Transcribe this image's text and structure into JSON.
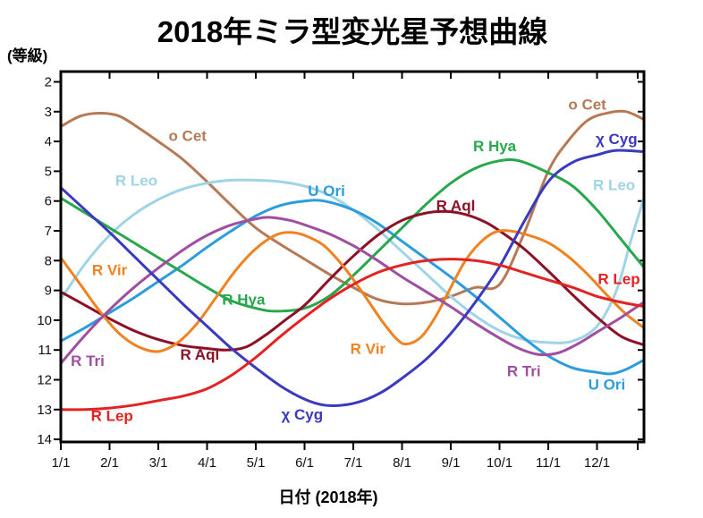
{
  "title": "2018年ミラ型変光星予想曲線",
  "y_axis": {
    "unit_label": "(等級)",
    "tick_labels": [
      "2",
      "3",
      "4",
      "5",
      "6",
      "7",
      "8",
      "9",
      "10",
      "11",
      "12",
      "13",
      "14"
    ],
    "tick_values": [
      2,
      3,
      4,
      5,
      6,
      7,
      8,
      9,
      10,
      11,
      12,
      13,
      14
    ]
  },
  "x_axis": {
    "label": "日付 (2018年)",
    "tick_labels": [
      "1/1",
      "2/1",
      "3/1",
      "4/1",
      "5/1",
      "6/1",
      "7/1",
      "8/1",
      "9/1",
      "10/1",
      "11/1",
      "12/1"
    ],
    "tick_months": [
      1,
      2,
      3,
      4,
      5,
      6,
      7,
      8,
      9,
      10,
      11,
      12
    ],
    "has_end_tick": true
  },
  "chart_data": {
    "type": "line",
    "title": "2018年ミラ型変光星予想曲線",
    "xlabel": "日付 (2018年)",
    "ylabel": "(等級)",
    "x_unit": "month number in 2018 (1 = Jan 1, 13 = Dec 31)",
    "xlim": [
      1,
      12.96
    ],
    "ylim": [
      2,
      14
    ],
    "y_axis_inverted": true,
    "grid": false,
    "legend": "labels drawn beside curves",
    "series": [
      {
        "id": "o-cet",
        "name": "o Cet",
        "color": "#b57a55",
        "labels": [
          {
            "text": "o Cet",
            "x": 3.6,
            "y": 3.8
          },
          {
            "text": "o Cet",
            "x": 11.8,
            "y": 2.75
          }
        ],
        "points": [
          [
            1,
            3.5
          ],
          [
            1.4,
            3.15
          ],
          [
            1.8,
            3.05
          ],
          [
            2.2,
            3.15
          ],
          [
            2.6,
            3.55
          ],
          [
            3,
            4.0
          ],
          [
            3.5,
            4.6
          ],
          [
            4,
            5.35
          ],
          [
            4.5,
            6.15
          ],
          [
            5,
            6.9
          ],
          [
            5.5,
            7.45
          ],
          [
            6,
            7.95
          ],
          [
            6.5,
            8.45
          ],
          [
            7,
            8.9
          ],
          [
            7.5,
            9.3
          ],
          [
            8,
            9.45
          ],
          [
            8.5,
            9.4
          ],
          [
            9,
            9.2
          ],
          [
            9.5,
            8.9
          ],
          [
            10,
            8.8
          ],
          [
            10.5,
            7.1
          ],
          [
            11,
            5.0
          ],
          [
            11.4,
            4.0
          ],
          [
            11.8,
            3.3
          ],
          [
            12.2,
            3.05
          ],
          [
            12.6,
            3.0
          ],
          [
            13,
            3.3
          ]
        ]
      },
      {
        "id": "r-leo",
        "name": "R Leo",
        "color": "#9fd4e6",
        "labels": [
          {
            "text": "R Leo",
            "x": 2.55,
            "y": 5.3
          },
          {
            "text": "R Leo",
            "x": 12.35,
            "y": 5.45
          }
        ],
        "points": [
          [
            1,
            9.3
          ],
          [
            1.5,
            8.1
          ],
          [
            2,
            7.15
          ],
          [
            2.5,
            6.45
          ],
          [
            3,
            5.95
          ],
          [
            3.5,
            5.6
          ],
          [
            4,
            5.4
          ],
          [
            4.5,
            5.3
          ],
          [
            5,
            5.3
          ],
          [
            5.5,
            5.35
          ],
          [
            6,
            5.5
          ],
          [
            6.5,
            5.8
          ],
          [
            7,
            6.3
          ],
          [
            7.5,
            6.95
          ],
          [
            8,
            7.7
          ],
          [
            8.5,
            8.45
          ],
          [
            9,
            9.2
          ],
          [
            9.5,
            9.85
          ],
          [
            10,
            10.35
          ],
          [
            10.5,
            10.65
          ],
          [
            11,
            10.75
          ],
          [
            11.5,
            10.7
          ],
          [
            12,
            10.2
          ],
          [
            12.4,
            9.0
          ],
          [
            12.7,
            7.3
          ],
          [
            13,
            5.7
          ]
        ]
      },
      {
        "id": "u-ori",
        "name": "U Ori",
        "color": "#2b9ddd",
        "labels": [
          {
            "text": "U Ori",
            "x": 6.45,
            "y": 5.65
          },
          {
            "text": "U Ori",
            "x": 12.2,
            "y": 12.15
          }
        ],
        "points": [
          [
            1,
            10.7
          ],
          [
            1.5,
            10.25
          ],
          [
            2,
            9.75
          ],
          [
            2.5,
            9.25
          ],
          [
            3,
            8.7
          ],
          [
            3.5,
            8.15
          ],
          [
            4,
            7.55
          ],
          [
            4.5,
            7.0
          ],
          [
            5,
            6.5
          ],
          [
            5.5,
            6.15
          ],
          [
            6,
            6.0
          ],
          [
            6.4,
            6.0
          ],
          [
            7,
            6.3
          ],
          [
            7.5,
            6.75
          ],
          [
            8,
            7.35
          ],
          [
            8.5,
            7.95
          ],
          [
            9,
            8.55
          ],
          [
            9.5,
            9.2
          ],
          [
            10,
            9.9
          ],
          [
            10.5,
            10.6
          ],
          [
            11,
            11.2
          ],
          [
            11.5,
            11.6
          ],
          [
            12,
            11.75
          ],
          [
            12.3,
            11.8
          ],
          [
            12.6,
            11.65
          ],
          [
            13,
            11.3
          ]
        ]
      },
      {
        "id": "r-hya",
        "name": "R Hya",
        "color": "#28a74d",
        "labels": [
          {
            "text": "R Hya",
            "x": 4.75,
            "y": 9.3
          },
          {
            "text": "R Hya",
            "x": 9.9,
            "y": 4.15
          }
        ],
        "points": [
          [
            1,
            5.9
          ],
          [
            1.5,
            6.4
          ],
          [
            2,
            6.9
          ],
          [
            2.5,
            7.4
          ],
          [
            3,
            7.9
          ],
          [
            3.5,
            8.4
          ],
          [
            4,
            8.9
          ],
          [
            4.5,
            9.35
          ],
          [
            5,
            9.6
          ],
          [
            5.4,
            9.7
          ],
          [
            6,
            9.6
          ],
          [
            6.5,
            9.2
          ],
          [
            7,
            8.5
          ],
          [
            7.5,
            7.7
          ],
          [
            8,
            6.9
          ],
          [
            8.5,
            6.1
          ],
          [
            9,
            5.4
          ],
          [
            9.5,
            4.9
          ],
          [
            10,
            4.65
          ],
          [
            10.4,
            4.65
          ],
          [
            11,
            5.05
          ],
          [
            11.5,
            5.5
          ],
          [
            12,
            6.3
          ],
          [
            12.5,
            7.3
          ],
          [
            13,
            8.3
          ]
        ]
      },
      {
        "id": "r-aql",
        "name": "R Aql",
        "color": "#8c1026",
        "labels": [
          {
            "text": "R Aql",
            "x": 3.85,
            "y": 11.15
          },
          {
            "text": "R Aql",
            "x": 9.1,
            "y": 6.15
          }
        ],
        "points": [
          [
            1,
            9.05
          ],
          [
            1.5,
            9.5
          ],
          [
            2,
            9.95
          ],
          [
            2.5,
            10.35
          ],
          [
            3,
            10.65
          ],
          [
            3.5,
            10.85
          ],
          [
            4,
            10.95
          ],
          [
            4.4,
            11.0
          ],
          [
            4.8,
            10.9
          ],
          [
            5.2,
            10.5
          ],
          [
            5.6,
            10.0
          ],
          [
            6,
            9.5
          ],
          [
            6.5,
            8.65
          ],
          [
            7,
            7.85
          ],
          [
            7.5,
            7.15
          ],
          [
            8,
            6.65
          ],
          [
            8.5,
            6.4
          ],
          [
            8.9,
            6.35
          ],
          [
            9.3,
            6.45
          ],
          [
            9.7,
            6.7
          ],
          [
            10,
            7.0
          ],
          [
            10.5,
            7.6
          ],
          [
            11,
            8.35
          ],
          [
            11.5,
            9.15
          ],
          [
            12,
            9.9
          ],
          [
            12.5,
            10.55
          ],
          [
            13,
            10.85
          ]
        ]
      },
      {
        "id": "r-vir",
        "name": "R Vir",
        "color": "#f08222",
        "labels": [
          {
            "text": "R Vir",
            "x": 2.0,
            "y": 8.3
          },
          {
            "text": "R Vir",
            "x": 7.3,
            "y": 10.95
          }
        ],
        "points": [
          [
            1,
            7.9
          ],
          [
            1.4,
            8.8
          ],
          [
            1.8,
            9.7
          ],
          [
            2.2,
            10.45
          ],
          [
            2.6,
            10.9
          ],
          [
            3,
            11.05
          ],
          [
            3.4,
            10.75
          ],
          [
            3.8,
            10.1
          ],
          [
            4.2,
            9.2
          ],
          [
            4.6,
            8.3
          ],
          [
            5,
            7.6
          ],
          [
            5.4,
            7.15
          ],
          [
            5.7,
            7.05
          ],
          [
            6,
            7.15
          ],
          [
            6.4,
            7.5
          ],
          [
            6.8,
            8.2
          ],
          [
            7.2,
            9.1
          ],
          [
            7.6,
            10.05
          ],
          [
            7.9,
            10.65
          ],
          [
            8.1,
            10.8
          ],
          [
            8.4,
            10.55
          ],
          [
            8.7,
            9.85
          ],
          [
            9,
            8.9
          ],
          [
            9.3,
            8.0
          ],
          [
            9.6,
            7.4
          ],
          [
            9.9,
            7.05
          ],
          [
            10.2,
            7.0
          ],
          [
            10.6,
            7.15
          ],
          [
            11,
            7.4
          ],
          [
            11.4,
            7.85
          ],
          [
            11.8,
            8.45
          ],
          [
            12.2,
            9.15
          ],
          [
            12.6,
            9.8
          ],
          [
            13,
            10.3
          ]
        ]
      },
      {
        "id": "r-tri",
        "name": "R Tri",
        "color": "#a04fa0",
        "labels": [
          {
            "text": "R Tri",
            "x": 1.55,
            "y": 11.35
          },
          {
            "text": "R Tri",
            "x": 10.5,
            "y": 11.7
          }
        ],
        "points": [
          [
            1,
            11.45
          ],
          [
            1.5,
            10.5
          ],
          [
            2,
            9.65
          ],
          [
            2.5,
            8.9
          ],
          [
            3,
            8.25
          ],
          [
            3.5,
            7.65
          ],
          [
            4,
            7.15
          ],
          [
            4.5,
            6.8
          ],
          [
            5,
            6.6
          ],
          [
            5.3,
            6.55
          ],
          [
            5.7,
            6.65
          ],
          [
            6,
            6.8
          ],
          [
            6.5,
            7.1
          ],
          [
            7,
            7.5
          ],
          [
            7.5,
            8.0
          ],
          [
            8,
            8.55
          ],
          [
            8.5,
            9.05
          ],
          [
            9,
            9.55
          ],
          [
            9.5,
            10.1
          ],
          [
            10,
            10.6
          ],
          [
            10.4,
            10.95
          ],
          [
            10.8,
            11.15
          ],
          [
            11.2,
            11.1
          ],
          [
            11.6,
            10.8
          ],
          [
            12,
            10.4
          ],
          [
            12.5,
            9.9
          ],
          [
            13,
            9.35
          ]
        ]
      },
      {
        "id": "chi-cyg",
        "name": "χ Cyg",
        "color": "#3a3ac0",
        "labels": [
          {
            "text": "χ Cyg",
            "x": 5.95,
            "y": 13.15
          },
          {
            "text": "χ Cyg",
            "x": 12.4,
            "y": 3.9
          }
        ],
        "points": [
          [
            1,
            5.55
          ],
          [
            1.5,
            6.3
          ],
          [
            2,
            7.05
          ],
          [
            2.5,
            7.85
          ],
          [
            3,
            8.65
          ],
          [
            3.5,
            9.45
          ],
          [
            4,
            10.2
          ],
          [
            4.5,
            10.95
          ],
          [
            5,
            11.6
          ],
          [
            5.5,
            12.2
          ],
          [
            6,
            12.65
          ],
          [
            6.4,
            12.85
          ],
          [
            6.8,
            12.85
          ],
          [
            7.2,
            12.7
          ],
          [
            7.6,
            12.4
          ],
          [
            8,
            11.95
          ],
          [
            8.5,
            11.3
          ],
          [
            9,
            10.45
          ],
          [
            9.5,
            9.4
          ],
          [
            10,
            8.2
          ],
          [
            10.5,
            6.7
          ],
          [
            11,
            5.35
          ],
          [
            11.5,
            4.7
          ],
          [
            12,
            4.45
          ],
          [
            12.4,
            4.3
          ],
          [
            13,
            4.35
          ]
        ]
      },
      {
        "id": "r-lep",
        "name": "R Lep",
        "color": "#e32222",
        "labels": [
          {
            "text": "R Lep",
            "x": 2.05,
            "y": 13.2
          },
          {
            "text": "R Lep",
            "x": 12.45,
            "y": 8.6
          }
        ],
        "points": [
          [
            1,
            13.0
          ],
          [
            1.5,
            13.0
          ],
          [
            2,
            12.95
          ],
          [
            2.5,
            12.85
          ],
          [
            3,
            12.7
          ],
          [
            3.5,
            12.55
          ],
          [
            4,
            12.3
          ],
          [
            4.5,
            11.85
          ],
          [
            5,
            11.25
          ],
          [
            5.5,
            10.55
          ],
          [
            6,
            9.9
          ],
          [
            6.5,
            9.3
          ],
          [
            7,
            8.8
          ],
          [
            7.5,
            8.4
          ],
          [
            8,
            8.15
          ],
          [
            8.5,
            8.0
          ],
          [
            9,
            7.95
          ],
          [
            9.5,
            8.0
          ],
          [
            10,
            8.15
          ],
          [
            10.5,
            8.4
          ],
          [
            11,
            8.65
          ],
          [
            11.5,
            8.9
          ],
          [
            12,
            9.2
          ],
          [
            12.5,
            9.4
          ],
          [
            13,
            9.55
          ]
        ]
      }
    ]
  }
}
